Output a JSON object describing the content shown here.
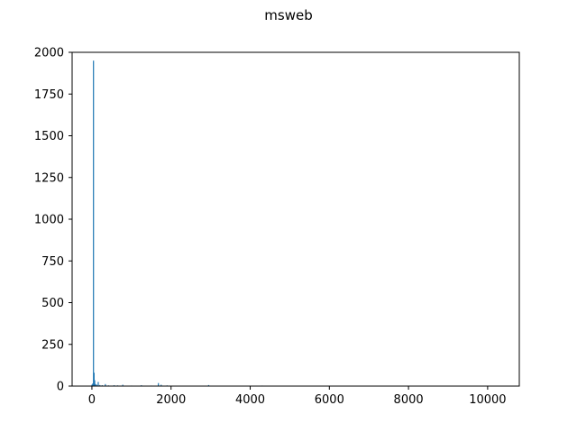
{
  "chart_data": {
    "type": "bar",
    "title": "msweb",
    "xlabel": "",
    "ylabel": "",
    "xlim": [
      -500,
      10800
    ],
    "ylim": [
      0,
      2000
    ],
    "xticks": [
      0,
      2000,
      4000,
      6000,
      8000,
      10000
    ],
    "yticks": [
      0,
      250,
      500,
      750,
      1000,
      1250,
      1500,
      1750,
      2000
    ],
    "xtick_labels": [
      "0",
      "2000",
      "4000",
      "6000",
      "8000",
      "10000"
    ],
    "ytick_labels": [
      "0",
      "250",
      "500",
      "750",
      "1000",
      "1250",
      "1500",
      "1750",
      "2000"
    ],
    "grid": false,
    "bar_color": "#1f77b4",
    "points": [
      {
        "x": 0,
        "y": 8
      },
      {
        "x": 20,
        "y": 15
      },
      {
        "x": 40,
        "y": 1950
      },
      {
        "x": 55,
        "y": 80
      },
      {
        "x": 70,
        "y": 35
      },
      {
        "x": 90,
        "y": 12
      },
      {
        "x": 120,
        "y": 8
      },
      {
        "x": 160,
        "y": 25
      },
      {
        "x": 200,
        "y": 6
      },
      {
        "x": 260,
        "y": 5
      },
      {
        "x": 340,
        "y": 12
      },
      {
        "x": 420,
        "y": 4
      },
      {
        "x": 560,
        "y": 5
      },
      {
        "x": 650,
        "y": 4
      },
      {
        "x": 780,
        "y": 8
      },
      {
        "x": 1000,
        "y": 3
      },
      {
        "x": 1250,
        "y": 5
      },
      {
        "x": 1500,
        "y": 3
      },
      {
        "x": 1680,
        "y": 18
      },
      {
        "x": 1750,
        "y": 8
      },
      {
        "x": 1900,
        "y": 4
      },
      {
        "x": 2950,
        "y": 6
      },
      {
        "x": 4300,
        "y": 3
      }
    ]
  }
}
